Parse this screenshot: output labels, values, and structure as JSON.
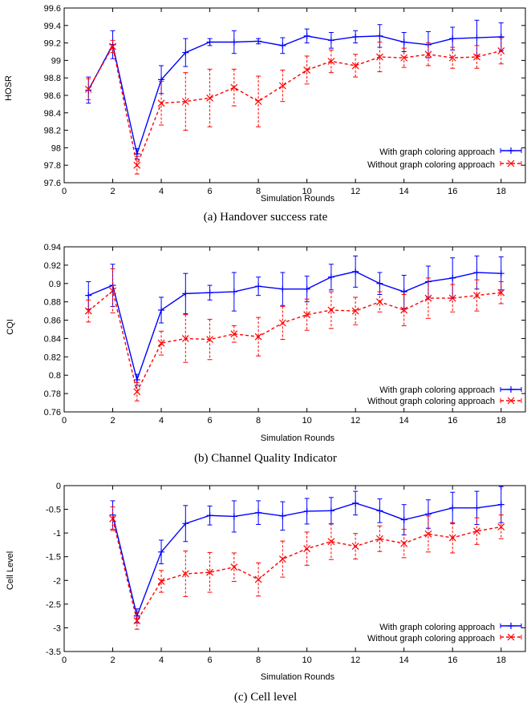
{
  "chart_data": [
    {
      "type": "line",
      "caption": "(a) Handover success rate",
      "xlabel": "Simulation Rounds",
      "ylabel": "HOSR",
      "xlim": [
        0,
        19
      ],
      "ylim": [
        97.6,
        99.6
      ],
      "xticks": [
        0,
        2,
        4,
        6,
        8,
        10,
        12,
        14,
        16,
        18
      ],
      "yticks": [
        97.6,
        97.8,
        98,
        98.2,
        98.4,
        98.6,
        98.8,
        99,
        99.2,
        99.4,
        99.6
      ],
      "ytick_labels": [
        "97.6",
        "97.8",
        "98",
        "98.2",
        "98.4",
        "98.6",
        "98.8",
        "99",
        "99.2",
        "99.4",
        "99.6"
      ],
      "legend_position": "bottom-right",
      "series": [
        {
          "name": "With graph coloring approach",
          "color": "#0000ff",
          "style": "solid",
          "marker": "plus",
          "x": [
            1,
            2,
            3,
            4,
            5,
            6,
            7,
            8,
            9,
            10,
            11,
            12,
            13,
            14,
            15,
            16,
            17,
            18
          ],
          "y": [
            98.66,
            99.18,
            97.93,
            98.78,
            99.09,
            99.21,
            99.21,
            99.22,
            99.17,
            99.28,
            99.23,
            99.27,
            99.28,
            99.21,
            99.18,
            99.25,
            99.26,
            99.27
          ],
          "err": [
            0.15,
            0.16,
            0.06,
            0.16,
            0.16,
            0.04,
            0.13,
            0.03,
            0.09,
            0.08,
            0.09,
            0.07,
            0.13,
            0.11,
            0.15,
            0.13,
            0.2,
            0.16
          ]
        },
        {
          "name": "Without graph coloring approach",
          "color": "#ff0000",
          "style": "dashed",
          "marker": "x",
          "x": [
            1,
            2,
            3,
            4,
            5,
            6,
            7,
            8,
            9,
            10,
            11,
            12,
            13,
            14,
            15,
            16,
            17,
            18
          ],
          "y": [
            98.67,
            99.16,
            97.8,
            98.51,
            98.53,
            98.57,
            98.69,
            98.53,
            98.71,
            98.89,
            98.99,
            98.94,
            99.04,
            99.03,
            99.07,
            99.03,
            99.04,
            99.11
          ],
          "err": [
            0.12,
            0.07,
            0.1,
            0.25,
            0.33,
            0.33,
            0.21,
            0.29,
            0.18,
            0.16,
            0.13,
            0.13,
            0.17,
            0.11,
            0.13,
            0.12,
            0.13,
            0.15
          ]
        }
      ]
    },
    {
      "type": "line",
      "caption": "(b) Channel Quality Indicator",
      "xlabel": "Simulation Rounds",
      "ylabel": "CQI",
      "xlim": [
        0,
        19
      ],
      "ylim": [
        0.76,
        0.94
      ],
      "xticks": [
        0,
        2,
        4,
        6,
        8,
        10,
        12,
        14,
        16,
        18
      ],
      "yticks": [
        0.76,
        0.78,
        0.8,
        0.82,
        0.84,
        0.86,
        0.88,
        0.9,
        0.92,
        0.94
      ],
      "ytick_labels": [
        "0.76",
        "0.78",
        "0.8",
        "0.82",
        "0.84",
        "0.86",
        "0.88",
        "0.9",
        "0.92",
        "0.94"
      ],
      "legend_position": "bottom-right",
      "series": [
        {
          "name": "With graph coloring approach",
          "color": "#0000ff",
          "style": "solid",
          "marker": "plus",
          "x": [
            1,
            2,
            3,
            4,
            5,
            6,
            7,
            8,
            9,
            10,
            11,
            12,
            13,
            14,
            15,
            16,
            17,
            18
          ],
          "y": [
            0.887,
            0.898,
            0.795,
            0.871,
            0.889,
            0.89,
            0.891,
            0.897,
            0.894,
            0.894,
            0.907,
            0.913,
            0.9,
            0.891,
            0.902,
            0.906,
            0.912,
            0.911
          ],
          "err": [
            0.015,
            0.023,
            0.006,
            0.014,
            0.022,
            0.008,
            0.021,
            0.01,
            0.018,
            0.014,
            0.014,
            0.017,
            0.012,
            0.018,
            0.017,
            0.022,
            0.018,
            0.018
          ]
        },
        {
          "name": "Without graph coloring approach",
          "color": "#ff0000",
          "style": "dashed",
          "marker": "x",
          "x": [
            1,
            2,
            3,
            4,
            5,
            6,
            7,
            8,
            9,
            10,
            11,
            12,
            13,
            14,
            15,
            16,
            17,
            18
          ],
          "y": [
            0.87,
            0.892,
            0.782,
            0.835,
            0.84,
            0.839,
            0.845,
            0.842,
            0.857,
            0.866,
            0.871,
            0.87,
            0.88,
            0.871,
            0.884,
            0.884,
            0.887,
            0.89
          ],
          "err": [
            0.012,
            0.024,
            0.01,
            0.013,
            0.026,
            0.022,
            0.009,
            0.021,
            0.018,
            0.017,
            0.02,
            0.015,
            0.011,
            0.017,
            0.022,
            0.015,
            0.017,
            0.012
          ]
        }
      ]
    },
    {
      "type": "line",
      "caption": "(c) Cell level",
      "xlabel": "Simulation Rounds",
      "ylabel": "Cell Level",
      "xlim": [
        0,
        19
      ],
      "ylim": [
        -3.5,
        0
      ],
      "xticks": [
        0,
        2,
        4,
        6,
        8,
        10,
        12,
        14,
        16,
        18
      ],
      "yticks": [
        -3.5,
        -3,
        -2.5,
        -2,
        -1.5,
        -1,
        -0.5,
        0
      ],
      "ytick_labels": [
        "-3.5",
        "-3",
        "-2.5",
        "-2",
        "-1.5",
        "-1",
        "-0.5",
        "0"
      ],
      "legend_position": "bottom-right",
      "series": [
        {
          "name": "With graph coloring approach",
          "color": "#0000ff",
          "style": "solid",
          "marker": "plus",
          "x": [
            2,
            3,
            4,
            5,
            6,
            7,
            8,
            9,
            10,
            11,
            12,
            13,
            14,
            15,
            16,
            17,
            18
          ],
          "y": [
            -0.62,
            -2.75,
            -1.4,
            -0.8,
            -0.63,
            -0.65,
            -0.57,
            -0.64,
            -0.54,
            -0.53,
            -0.37,
            -0.53,
            -0.72,
            -0.6,
            -0.47,
            -0.47,
            -0.4
          ],
          "err": [
            0.3,
            0.15,
            0.25,
            0.38,
            0.2,
            0.33,
            0.25,
            0.3,
            0.27,
            0.28,
            0.25,
            0.25,
            0.32,
            0.3,
            0.33,
            0.35,
            0.38
          ]
        },
        {
          "name": "Without graph coloring approach",
          "color": "#ff0000",
          "style": "dashed",
          "marker": "x",
          "x": [
            2,
            3,
            4,
            5,
            6,
            7,
            8,
            9,
            10,
            11,
            12,
            13,
            14,
            15,
            16,
            17,
            18
          ],
          "y": [
            -0.7,
            -2.85,
            -2.02,
            -1.86,
            -1.83,
            -1.72,
            -1.98,
            -1.55,
            -1.33,
            -1.18,
            -1.28,
            -1.12,
            -1.22,
            -1.02,
            -1.1,
            -0.96,
            -0.87
          ],
          "err": [
            0.25,
            0.18,
            0.23,
            0.48,
            0.42,
            0.3,
            0.35,
            0.38,
            0.35,
            0.38,
            0.27,
            0.27,
            0.3,
            0.38,
            0.32,
            0.28,
            0.25
          ]
        }
      ]
    }
  ]
}
